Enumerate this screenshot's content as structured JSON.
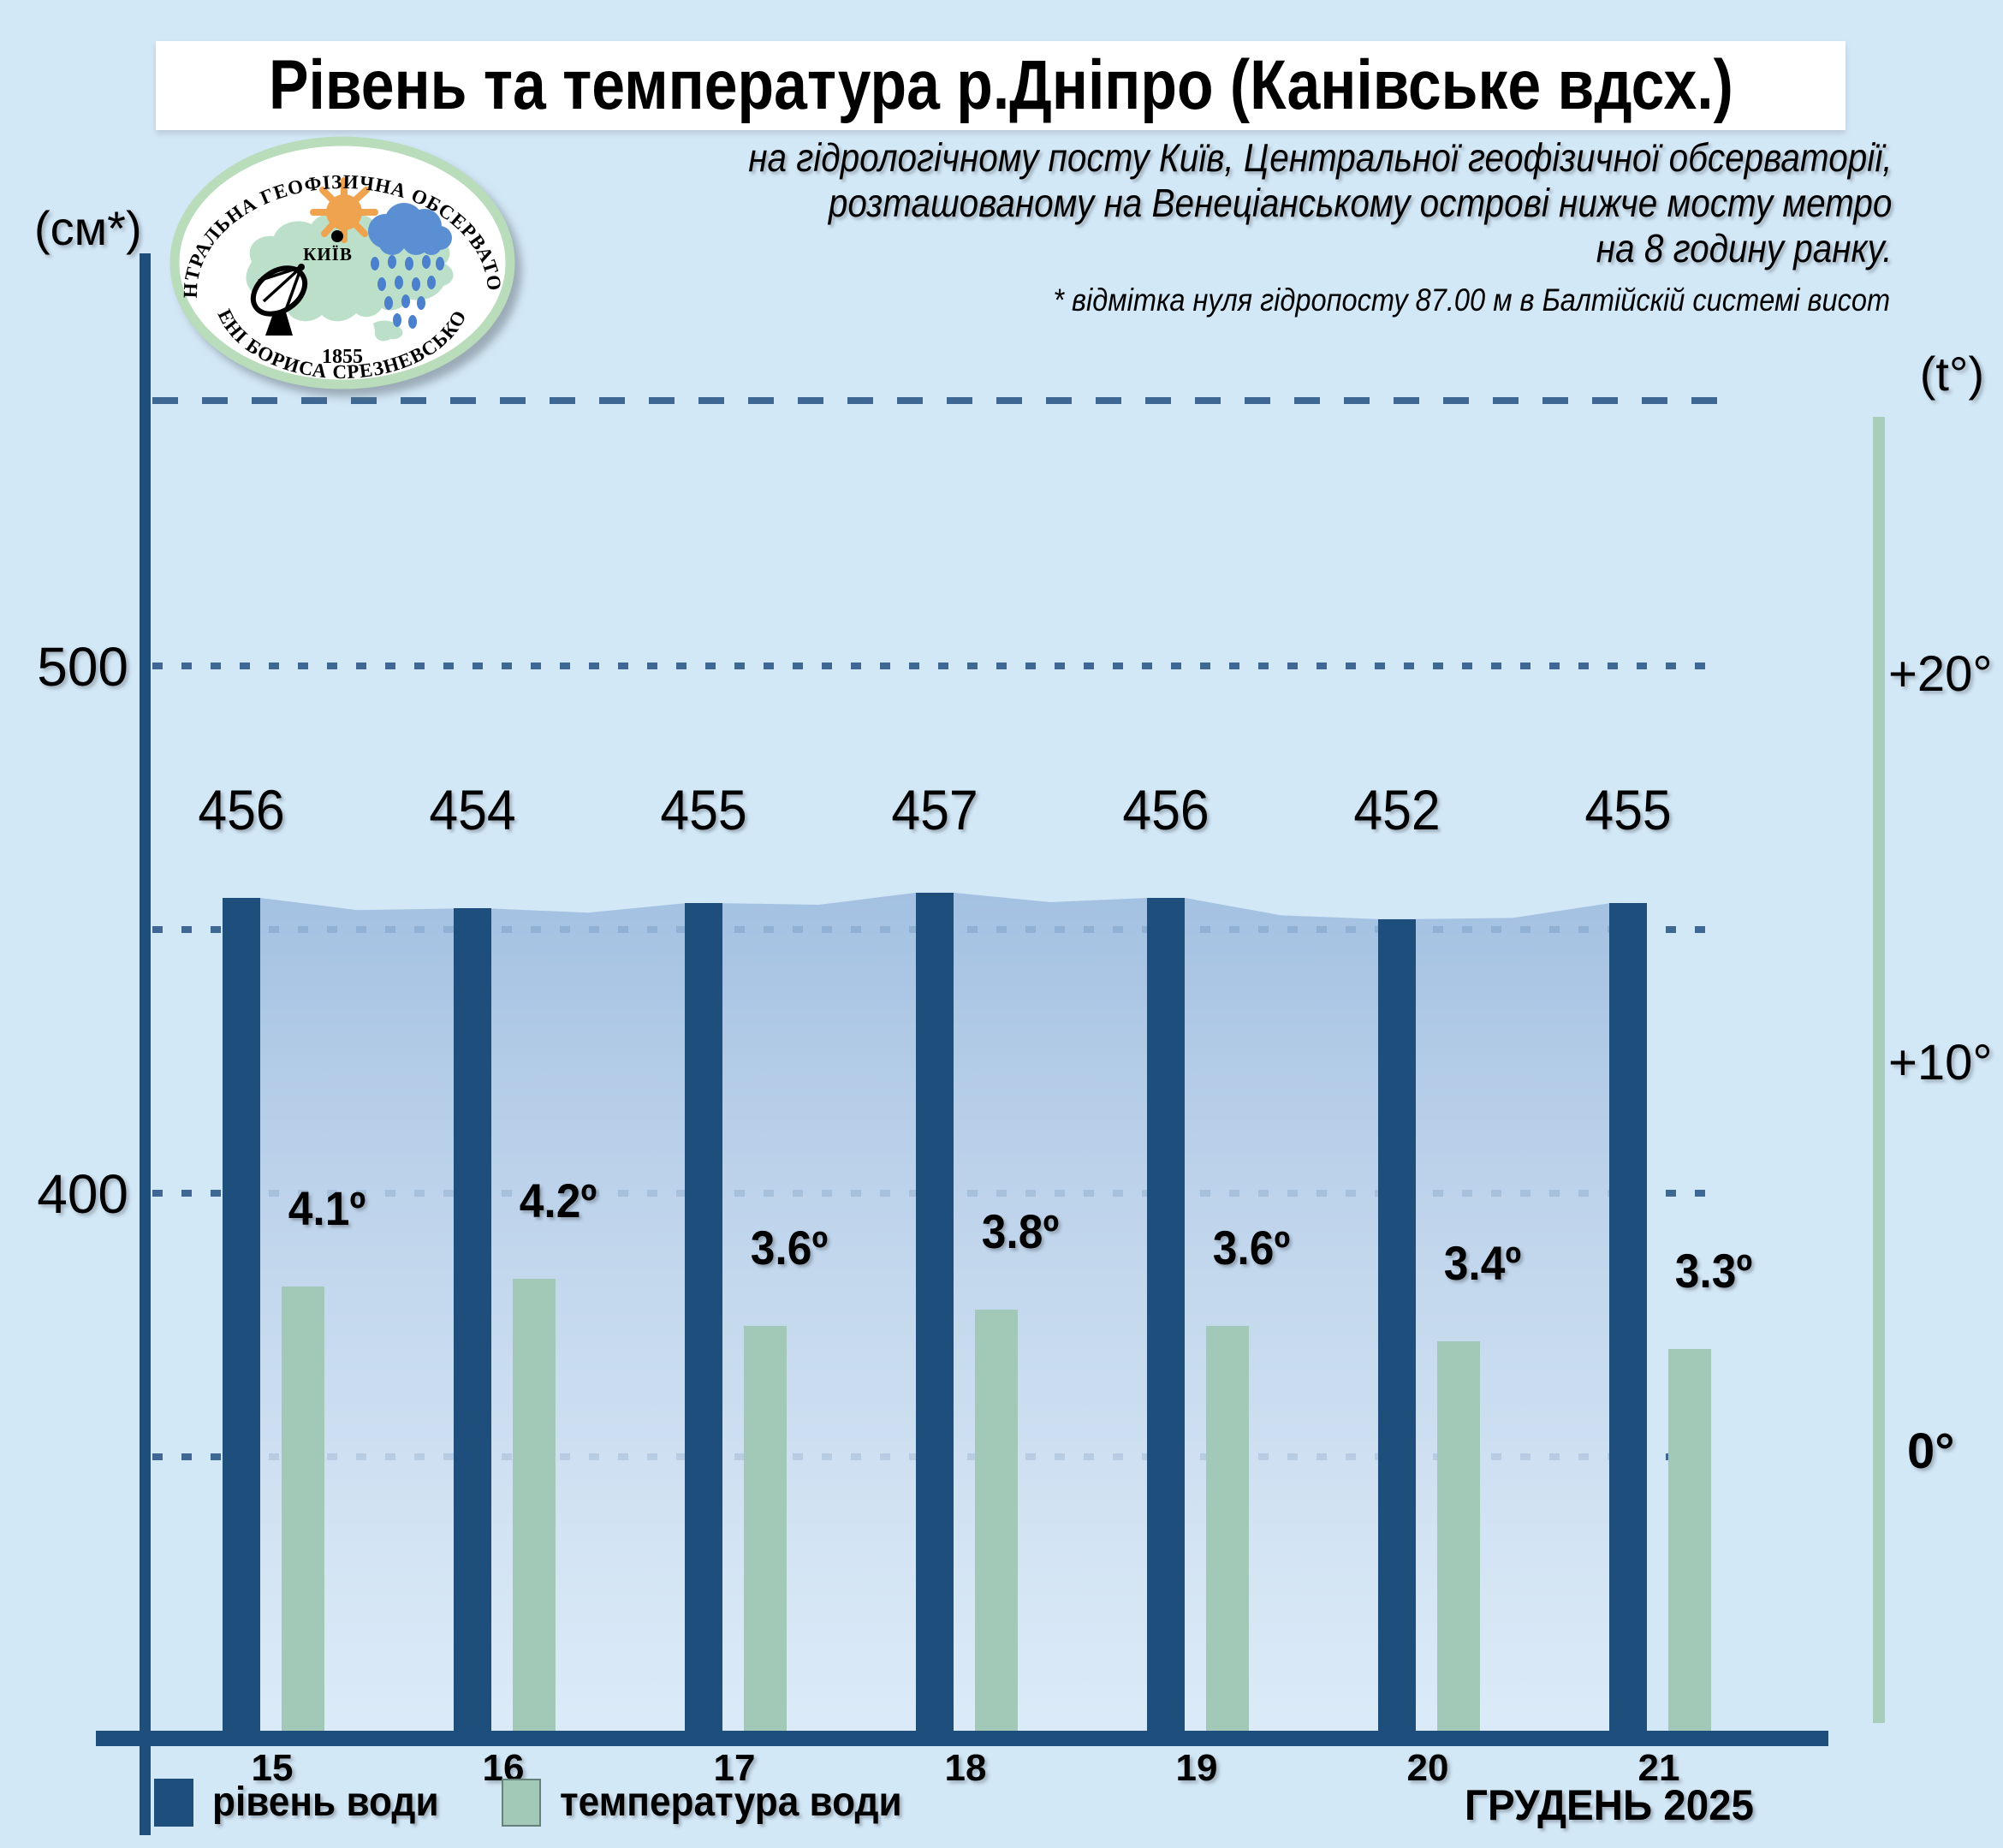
{
  "title": "Рівень та температура р.Дніпро (Канівське вдсх.)",
  "subtitle": {
    "lines": [
      "на гідрологічному посту Київ, Центральної геофізичної обсерваторії,",
      "розташованому на Венеціанському острові нижче мосту метро",
      "на 8 годину ранку."
    ]
  },
  "footnote": "* відмітка нуля гідропосту 87.00 м в Балтійскій системі висот",
  "left_axis": {
    "unit": "(см*)",
    "ticks": [
      "500",
      "400"
    ]
  },
  "right_axis": {
    "unit": "(t°)",
    "ticks": [
      "+20°",
      "+10°",
      "0°"
    ]
  },
  "legend": {
    "items": [
      {
        "label": "рівень води",
        "color": "#1d4e7c"
      },
      {
        "label": "температура води",
        "color": "#a2c9b7"
      }
    ]
  },
  "period_label": "ГРУДЕНЬ 2025",
  "logo": {
    "arc_top": "ЦЕНТРАЛЬНА ГЕОФІЗИЧНА ОБСЕРВАТОРІЯ",
    "arc_bottom": "ІМЕНІ БОРИСА СРЕЗНЕВСЬКОГО",
    "year": "1855",
    "city": "КИЇВ"
  },
  "colors": {
    "background": "#d3e8f7",
    "level_bar": "#1d4e7c",
    "temp_bar": "#a2c9b7",
    "temp_axis": "#a9cdbb",
    "grid": "#2d5a88",
    "area_top": "#9bbade",
    "area_bottom": "#ddebf8"
  },
  "chart_data": {
    "type": "bar",
    "categories": [
      "15",
      "16",
      "17",
      "18",
      "19",
      "20",
      "21"
    ],
    "series": [
      {
        "name": "рівень води",
        "unit": "см",
        "values": [
          456,
          454,
          455,
          457,
          456,
          452,
          455
        ]
      },
      {
        "name": "температура води",
        "unit": "°C",
        "values": [
          4.1,
          4.2,
          3.6,
          3.8,
          3.6,
          3.4,
          3.3
        ]
      }
    ],
    "title": "Рівень та температура р.Дніпро (Канівське вдсх.)",
    "xlabel": "ГРУДЕНЬ 2025",
    "ylabel_left": "см",
    "ylabel_right": "t°",
    "left_ylim": [
      340,
      560
    ],
    "right_ylim": [
      -2,
      22
    ],
    "grid": "horizontal-dashed",
    "legend_position": "bottom"
  }
}
